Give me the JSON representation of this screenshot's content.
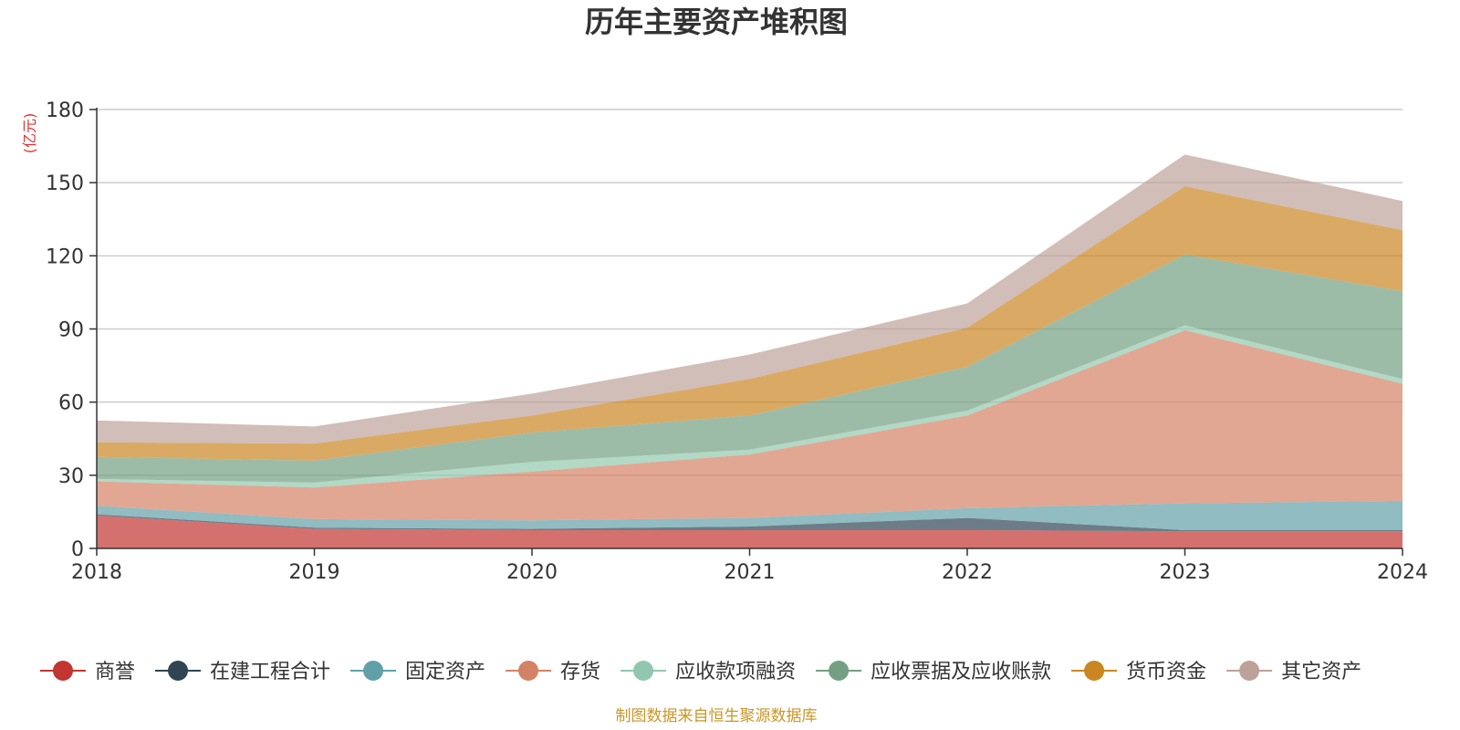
{
  "chart_data": {
    "type": "area",
    "stacked": true,
    "title": "历年主要资产堆积图",
    "unit_label": "(亿元)",
    "source": "制图数据来自恒生聚源数据库",
    "x": [
      "2018",
      "2019",
      "2020",
      "2021",
      "2022",
      "2023",
      "2024"
    ],
    "y_ticks": [
      "0",
      "30",
      "60",
      "90",
      "120",
      "150",
      "180"
    ],
    "ylim": [
      0,
      180
    ],
    "grid": true,
    "legend_position": "bottom",
    "series": [
      {
        "name": "商誉",
        "color": "#c23531",
        "values": [
          13.5,
          8,
          7.5,
          7.5,
          7.5,
          7,
          7
        ]
      },
      {
        "name": "在建工程合计",
        "color": "#2f4554",
        "values": [
          0.5,
          0.5,
          0.5,
          1.5,
          5,
          0.5,
          0.5
        ]
      },
      {
        "name": "固定资产",
        "color": "#61a0a8",
        "values": [
          3.5,
          3.5,
          3.5,
          3.5,
          4,
          11,
          12
        ]
      },
      {
        "name": "存货",
        "color": "#d48265",
        "values": [
          10,
          13,
          20,
          26,
          38,
          71,
          48
        ]
      },
      {
        "name": "应收款项融资",
        "color": "#91c7ae",
        "values": [
          1,
          2,
          4,
          2,
          2,
          2,
          2
        ]
      },
      {
        "name": "应收票据及应收账款",
        "color": "#749f83",
        "values": [
          9,
          9,
          12,
          14,
          18,
          29,
          36
        ]
      },
      {
        "name": "货币资金",
        "color": "#ca8622",
        "values": [
          6,
          7,
          7,
          15,
          16,
          28,
          25
        ]
      },
      {
        "name": "其它资产",
        "color": "#bda29a",
        "values": [
          9,
          7,
          9,
          10,
          10,
          13,
          12
        ]
      }
    ]
  }
}
